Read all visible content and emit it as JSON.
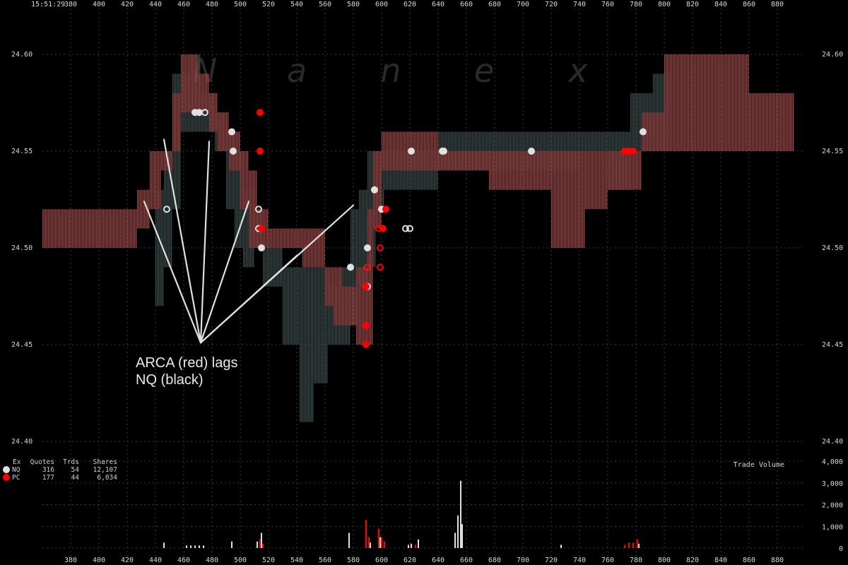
{
  "chart_data": {
    "type": "bar",
    "timestamp": "15:51:29",
    "watermark": [
      "N",
      "a",
      "n",
      "e",
      "x"
    ],
    "x_ticks": [
      380,
      400,
      420,
      440,
      460,
      480,
      500,
      520,
      540,
      560,
      580,
      600,
      620,
      640,
      660,
      680,
      700,
      720,
      740,
      760,
      780,
      800,
      820,
      840,
      860,
      880
    ],
    "xlim": [
      360,
      900
    ],
    "price_axis": {
      "ylim": [
        24.4,
        24.6
      ],
      "ticks": [
        "24.60",
        "24.55",
        "24.50",
        "24.45",
        "24.40"
      ]
    },
    "volume_axis": {
      "label": "Trade Volume",
      "ylim": [
        0,
        4000
      ],
      "ticks": [
        "4,000",
        "3,000",
        "2,000",
        "1,000",
        "0"
      ]
    },
    "annotation": {
      "lines": [
        "ARCA (red) lags",
        "NQ (black)"
      ],
      "origin": [
        472,
        24.451
      ],
      "targets": [
        [
          432,
          24.524
        ],
        [
          446,
          24.556
        ],
        [
          478,
          24.555
        ],
        [
          506,
          24.524
        ],
        [
          540,
          24.496
        ],
        [
          580,
          24.522
        ]
      ]
    },
    "legend": {
      "headers": [
        "Ex",
        "Quotes",
        "Trds",
        "Shares"
      ],
      "rows": [
        {
          "ex": "NQ",
          "quotes": "316",
          "trds": "54",
          "shares": "12,107",
          "color": "#e0e0e0"
        },
        {
          "ex": "PC",
          "quotes": "177",
          "trds": "44",
          "shares": "6,034",
          "color": "#ff0000"
        }
      ]
    },
    "series": [
      {
        "name": "NQ",
        "color": "#3a4848",
        "spreads": [
          [
            440,
            446,
            24.47,
            24.53
          ],
          [
            446,
            452,
            24.49,
            24.55
          ],
          [
            452,
            458,
            24.52,
            24.59
          ],
          [
            458,
            464,
            24.56,
            24.59
          ],
          [
            464,
            472,
            24.56,
            24.6
          ],
          [
            472,
            482,
            24.56,
            24.58
          ],
          [
            482,
            490,
            24.55,
            24.57
          ],
          [
            490,
            496,
            24.52,
            24.56
          ],
          [
            496,
            502,
            24.5,
            24.55
          ],
          [
            502,
            510,
            24.49,
            24.53
          ],
          [
            510,
            516,
            24.5,
            24.52
          ],
          [
            516,
            530,
            24.48,
            24.5
          ],
          [
            530,
            542,
            24.45,
            24.49
          ],
          [
            542,
            552,
            24.41,
            24.49
          ],
          [
            552,
            562,
            24.43,
            24.49
          ],
          [
            562,
            570,
            24.45,
            24.48
          ],
          [
            570,
            578,
            24.45,
            24.49
          ],
          [
            578,
            584,
            24.46,
            24.52
          ],
          [
            584,
            590,
            24.48,
            24.53
          ],
          [
            590,
            596,
            24.49,
            24.55
          ],
          [
            596,
            602,
            24.52,
            24.55
          ],
          [
            602,
            640,
            24.53,
            24.55
          ],
          [
            640,
            684,
            24.54,
            24.56
          ],
          [
            684,
            740,
            24.54,
            24.56
          ],
          [
            740,
            760,
            24.55,
            24.56
          ],
          [
            760,
            776,
            24.53,
            24.56
          ],
          [
            776,
            792,
            24.55,
            24.58
          ],
          [
            792,
            804,
            24.55,
            24.59
          ]
        ]
      },
      {
        "name": "PC",
        "color": "#9b4848",
        "spreads": [
          [
            360,
            427,
            24.5,
            24.52
          ],
          [
            427,
            436,
            24.51,
            24.53
          ],
          [
            436,
            444,
            24.52,
            24.55
          ],
          [
            444,
            452,
            24.54,
            24.55
          ],
          [
            452,
            458,
            24.55,
            24.58
          ],
          [
            458,
            470,
            24.57,
            24.6
          ],
          [
            470,
            478,
            24.57,
            24.59
          ],
          [
            478,
            484,
            24.56,
            24.58
          ],
          [
            484,
            492,
            24.55,
            24.57
          ],
          [
            492,
            500,
            24.54,
            24.56
          ],
          [
            500,
            506,
            24.52,
            24.55
          ],
          [
            506,
            512,
            24.5,
            24.54
          ],
          [
            512,
            520,
            24.5,
            24.52
          ],
          [
            520,
            544,
            24.5,
            24.51
          ],
          [
            544,
            560,
            24.49,
            24.51
          ],
          [
            560,
            566,
            24.47,
            24.49
          ],
          [
            566,
            572,
            24.46,
            24.49
          ],
          [
            572,
            582,
            24.46,
            24.48
          ],
          [
            582,
            590,
            24.45,
            24.49
          ],
          [
            590,
            594,
            24.45,
            24.52
          ],
          [
            594,
            600,
            24.51,
            24.55
          ],
          [
            600,
            640,
            24.54,
            24.56
          ],
          [
            640,
            676,
            24.54,
            24.55
          ],
          [
            676,
            702,
            24.53,
            24.55
          ],
          [
            702,
            720,
            24.53,
            24.55
          ],
          [
            720,
            730,
            24.5,
            24.55
          ],
          [
            730,
            744,
            24.5,
            24.55
          ],
          [
            744,
            760,
            24.52,
            24.55
          ],
          [
            760,
            784,
            24.53,
            24.55
          ],
          [
            784,
            800,
            24.55,
            24.57
          ],
          [
            800,
            860,
            24.55,
            24.6
          ],
          [
            860,
            884,
            24.55,
            24.58
          ],
          [
            884,
            892,
            24.55,
            24.58
          ]
        ]
      }
    ],
    "trades": [
      {
        "ex": "NQ",
        "x": 448,
        "y": 24.52,
        "filled": false
      },
      {
        "ex": "NQ",
        "x": 468,
        "y": 24.57,
        "filled": true
      },
      {
        "ex": "NQ",
        "x": 471,
        "y": 24.57,
        "filled": true
      },
      {
        "ex": "NQ",
        "x": 475,
        "y": 24.57,
        "filled": false
      },
      {
        "ex": "NQ",
        "x": 494,
        "y": 24.56,
        "filled": true
      },
      {
        "ex": "NQ",
        "x": 495,
        "y": 24.55,
        "filled": true
      },
      {
        "ex": "NQ",
        "x": 513,
        "y": 24.52,
        "filled": false
      },
      {
        "ex": "NQ",
        "x": 513,
        "y": 24.51,
        "filled": false
      },
      {
        "ex": "NQ",
        "x": 515,
        "y": 24.5,
        "filled": true
      },
      {
        "ex": "NQ",
        "x": 578,
        "y": 24.49,
        "filled": true
      },
      {
        "ex": "NQ",
        "x": 590,
        "y": 24.5,
        "filled": true
      },
      {
        "ex": "NQ",
        "x": 590,
        "y": 24.49,
        "filled": false
      },
      {
        "ex": "NQ",
        "x": 590,
        "y": 24.48,
        "filled": true
      },
      {
        "ex": "NQ",
        "x": 595,
        "y": 24.53,
        "filled": true
      },
      {
        "ex": "NQ",
        "x": 600,
        "y": 24.52,
        "filled": true
      },
      {
        "ex": "NQ",
        "x": 617,
        "y": 24.51,
        "filled": false
      },
      {
        "ex": "NQ",
        "x": 620,
        "y": 24.51,
        "filled": false
      },
      {
        "ex": "NQ",
        "x": 621,
        "y": 24.55,
        "filled": true
      },
      {
        "ex": "NQ",
        "x": 643,
        "y": 24.55,
        "filled": true
      },
      {
        "ex": "NQ",
        "x": 644,
        "y": 24.55,
        "filled": true
      },
      {
        "ex": "NQ",
        "x": 706,
        "y": 24.55,
        "filled": true
      },
      {
        "ex": "NQ",
        "x": 785,
        "y": 24.56,
        "filled": true
      },
      {
        "ex": "PC",
        "x": 514,
        "y": 24.57,
        "filled": true
      },
      {
        "ex": "PC",
        "x": 514,
        "y": 24.55,
        "filled": true
      },
      {
        "ex": "PC",
        "x": 515,
        "y": 24.51,
        "filled": true
      },
      {
        "ex": "PC",
        "x": 589,
        "y": 24.48,
        "filled": true
      },
      {
        "ex": "PC",
        "x": 589,
        "y": 24.46,
        "filled": true
      },
      {
        "ex": "PC",
        "x": 589,
        "y": 24.45,
        "filled": true
      },
      {
        "ex": "PC",
        "x": 590,
        "y": 24.49,
        "filled": false
      },
      {
        "ex": "PC",
        "x": 598,
        "y": 24.51,
        "filled": false
      },
      {
        "ex": "PC",
        "x": 599,
        "y": 24.5,
        "filled": false
      },
      {
        "ex": "PC",
        "x": 599,
        "y": 24.49,
        "filled": false
      },
      {
        "ex": "PC",
        "x": 601,
        "y": 24.51,
        "filled": true
      },
      {
        "ex": "PC",
        "x": 603,
        "y": 24.52,
        "filled": true
      },
      {
        "ex": "PC",
        "x": 772,
        "y": 24.55,
        "filled": true
      },
      {
        "ex": "PC",
        "x": 775,
        "y": 24.55,
        "filled": true
      },
      {
        "ex": "PC",
        "x": 778,
        "y": 24.55,
        "filled": true
      }
    ],
    "volume": [
      {
        "ex": "NQ",
        "x": 446,
        "v": 250
      },
      {
        "ex": "NQ",
        "x": 462,
        "v": 120
      },
      {
        "ex": "NQ",
        "x": 465,
        "v": 120
      },
      {
        "ex": "NQ",
        "x": 468,
        "v": 120
      },
      {
        "ex": "NQ",
        "x": 471,
        "v": 120
      },
      {
        "ex": "NQ",
        "x": 474,
        "v": 120
      },
      {
        "ex": "NQ",
        "x": 494,
        "v": 300
      },
      {
        "ex": "NQ",
        "x": 512,
        "v": 300
      },
      {
        "ex": "NQ",
        "x": 515,
        "v": 700
      },
      {
        "ex": "NQ",
        "x": 577,
        "v": 700
      },
      {
        "ex": "NQ",
        "x": 589,
        "v": 600
      },
      {
        "ex": "NQ",
        "x": 592,
        "v": 250
      },
      {
        "ex": "NQ",
        "x": 599,
        "v": 500
      },
      {
        "ex": "NQ",
        "x": 602,
        "v": 200
      },
      {
        "ex": "NQ",
        "x": 619,
        "v": 150
      },
      {
        "ex": "NQ",
        "x": 621,
        "v": 200
      },
      {
        "ex": "NQ",
        "x": 626,
        "v": 400
      },
      {
        "ex": "NQ",
        "x": 652,
        "v": 700
      },
      {
        "ex": "NQ",
        "x": 654,
        "v": 1500
      },
      {
        "ex": "NQ",
        "x": 656,
        "v": 3100
      },
      {
        "ex": "NQ",
        "x": 657,
        "v": 1100
      },
      {
        "ex": "NQ",
        "x": 727,
        "v": 150
      },
      {
        "ex": "NQ",
        "x": 782,
        "v": 200
      },
      {
        "ex": "PC",
        "x": 514,
        "v": 400
      },
      {
        "ex": "PC",
        "x": 516,
        "v": 200
      },
      {
        "ex": "PC",
        "x": 589,
        "v": 1300
      },
      {
        "ex": "PC",
        "x": 591,
        "v": 500
      },
      {
        "ex": "PC",
        "x": 598,
        "v": 900
      },
      {
        "ex": "PC",
        "x": 600,
        "v": 500
      },
      {
        "ex": "PC",
        "x": 602,
        "v": 300
      },
      {
        "ex": "PC",
        "x": 624,
        "v": 150
      },
      {
        "ex": "PC",
        "x": 772,
        "v": 150
      },
      {
        "ex": "PC",
        "x": 775,
        "v": 250
      },
      {
        "ex": "PC",
        "x": 778,
        "v": 250
      },
      {
        "ex": "PC",
        "x": 781,
        "v": 400
      }
    ]
  }
}
